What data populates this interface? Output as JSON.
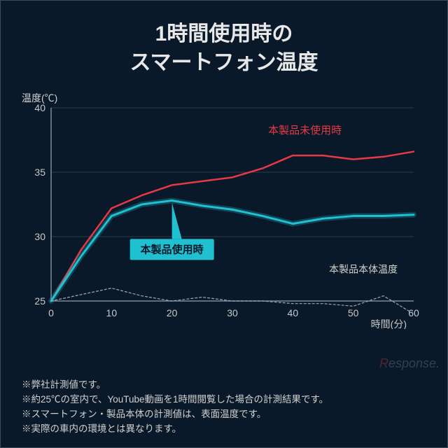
{
  "title_line1": "1時間使用時の",
  "title_line2": "スマートフォン温度",
  "ylabel": "温度(℃)",
  "xlabel": "時間(分)",
  "chart": {
    "type": "line",
    "background_color": "#0a1929",
    "grid_color": "#2a3a4a",
    "axis_color": "#7a8a9a",
    "xlim": [
      0,
      60
    ],
    "ylim": [
      25,
      40
    ],
    "xticks": [
      0,
      10,
      20,
      30,
      40,
      50,
      60
    ],
    "yticks": [
      25,
      30,
      35,
      40
    ],
    "x_values": [
      0,
      5,
      10,
      15,
      20,
      25,
      30,
      35,
      40,
      45,
      50,
      55,
      60
    ],
    "series": [
      {
        "name": "本製品未使用時",
        "label": "本製品未使用時",
        "color": "#e63946",
        "width": 2.5,
        "dash": "none",
        "y": [
          25,
          29,
          32.2,
          33.2,
          34,
          34.3,
          34.6,
          35.3,
          36.3,
          36.3,
          36,
          36.2,
          36.6
        ],
        "label_pos": {
          "x": 42,
          "y": 38
        }
      },
      {
        "name": "本製品使用時",
        "label": "本製品使用時",
        "color": "#1fc0d0",
        "glow_color": "#1fc0d0",
        "width": 3,
        "dash": "none",
        "y": [
          25,
          28.5,
          31.6,
          32.5,
          32.8,
          32.4,
          32.1,
          31.6,
          31,
          31.4,
          31.6,
          31.6,
          31.7
        ],
        "label_style": "badge",
        "label_pos": {
          "x": 20,
          "y": 29
        }
      },
      {
        "name": "本製品本体温度",
        "label": "本製品本体温度",
        "color": "#9aa8b5",
        "width": 1.2,
        "dash": "3,3",
        "y": [
          25,
          25.5,
          26,
          25.4,
          25,
          25.3,
          25,
          25,
          24.8,
          24.8,
          24.6,
          25.4,
          24
        ],
        "label_pos": {
          "x": 46,
          "y": 27.2
        }
      }
    ]
  },
  "footnotes": [
    "※弊社計測値です。",
    "※約25℃の室内で、YouTube動画を1時間閲覧した場合の計測結果です。",
    "※スマートフォン・製品本体の計測値は、表面温度です。",
    "※実際の車内の環境とは異なります。"
  ],
  "watermark": "Response."
}
